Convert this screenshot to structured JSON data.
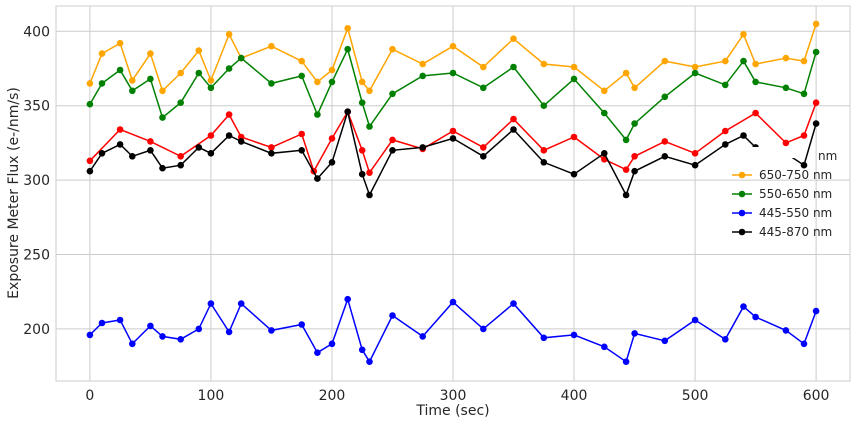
{
  "chart_data": {
    "type": "line",
    "xlabel": "Time (sec)",
    "ylabel": "Exposure Meter Flux (e-/nm/s)",
    "xlim": [
      -28,
      628
    ],
    "ylim": [
      165,
      417
    ],
    "xticks": [
      0,
      100,
      200,
      300,
      400,
      500,
      600
    ],
    "yticks": [
      200,
      250,
      300,
      350,
      400
    ],
    "grid": true,
    "legend_position": "right",
    "series": [
      {
        "name": "750-870 nm",
        "color": "#ff0000",
        "legend_partially_hidden": true,
        "x": [
          0,
          25,
          50,
          75,
          100,
          115,
          125,
          150,
          175,
          185,
          200,
          213,
          225,
          231,
          250,
          275,
          300,
          325,
          350,
          375,
          400,
          425,
          443,
          450,
          475,
          500,
          525,
          550,
          575,
          590,
          600
        ],
        "y": [
          313,
          334,
          326,
          316,
          330,
          344,
          329,
          322,
          331,
          306,
          328,
          346,
          320,
          305,
          327,
          321,
          333,
          322,
          341,
          320,
          329,
          314,
          307,
          316,
          326,
          318,
          333,
          345,
          325,
          330,
          352
        ]
      },
      {
        "name": "650-750 nm",
        "color": "#ffa500",
        "x": [
          0,
          10,
          25,
          35,
          50,
          60,
          75,
          90,
          100,
          115,
          125,
          150,
          175,
          188,
          200,
          213,
          225,
          231,
          250,
          275,
          300,
          325,
          350,
          375,
          400,
          425,
          443,
          450,
          475,
          500,
          525,
          540,
          550,
          575,
          590,
          600
        ],
        "y": [
          365,
          385,
          392,
          367,
          385,
          360,
          372,
          387,
          367,
          398,
          382,
          390,
          380,
          366,
          374,
          402,
          366,
          360,
          388,
          378,
          390,
          376,
          395,
          378,
          376,
          360,
          372,
          362,
          380,
          376,
          380,
          398,
          378,
          382,
          380,
          405
        ]
      },
      {
        "name": "550-650 nm",
        "color": "#008000",
        "x": [
          0,
          10,
          25,
          35,
          50,
          60,
          75,
          90,
          100,
          115,
          125,
          150,
          175,
          188,
          200,
          213,
          225,
          231,
          250,
          275,
          300,
          325,
          350,
          375,
          400,
          425,
          443,
          450,
          475,
          500,
          525,
          540,
          550,
          575,
          590,
          600
        ],
        "y": [
          351,
          365,
          374,
          360,
          368,
          342,
          352,
          372,
          362,
          375,
          382,
          365,
          370,
          344,
          366,
          388,
          352,
          336,
          358,
          370,
          372,
          362,
          376,
          350,
          368,
          345,
          327,
          338,
          356,
          372,
          364,
          380,
          366,
          362,
          358,
          386
        ]
      },
      {
        "name": "445-550 nm",
        "color": "#0000ff",
        "x": [
          0,
          10,
          25,
          35,
          50,
          60,
          75,
          90,
          100,
          115,
          125,
          150,
          175,
          188,
          200,
          213,
          225,
          231,
          250,
          275,
          300,
          325,
          350,
          375,
          400,
          425,
          443,
          450,
          475,
          500,
          525,
          540,
          550,
          575,
          590,
          600
        ],
        "y": [
          196,
          204,
          206,
          190,
          202,
          195,
          193,
          200,
          217,
          198,
          217,
          199,
          203,
          184,
          190,
          220,
          186,
          178,
          209,
          195,
          218,
          200,
          217,
          194,
          196,
          188,
          178,
          197,
          192,
          206,
          193,
          215,
          208,
          199,
          190,
          212
        ]
      },
      {
        "name": "445-870 nm",
        "color": "#000000",
        "x": [
          0,
          10,
          25,
          35,
          50,
          60,
          75,
          90,
          100,
          115,
          125,
          150,
          175,
          188,
          200,
          213,
          225,
          231,
          250,
          275,
          300,
          325,
          350,
          375,
          400,
          425,
          443,
          450,
          475,
          500,
          525,
          540,
          550,
          575,
          590,
          600
        ],
        "y": [
          306,
          318,
          324,
          316,
          320,
          308,
          310,
          322,
          318,
          330,
          326,
          318,
          320,
          301,
          312,
          346,
          304,
          290,
          320,
          322,
          328,
          316,
          334,
          312,
          304,
          318,
          290,
          306,
          316,
          310,
          324,
          330,
          322,
          318,
          310,
          338
        ]
      }
    ]
  }
}
